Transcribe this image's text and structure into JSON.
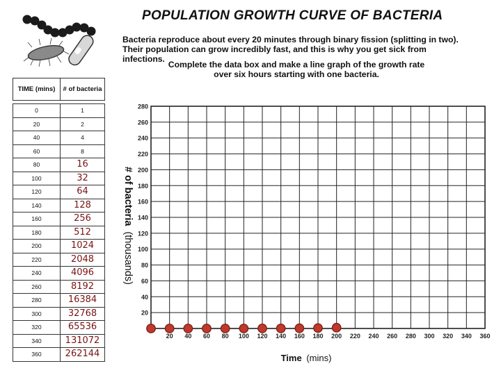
{
  "title": "POPULATION GROWTH CURVE OF BACTERIA",
  "intro": {
    "line1": "Bacteria reproduce about every 20 minutes through binary fission (splitting in two).",
    "line2": "Their population can grow incredibly fast, and this is why you get sick from infections."
  },
  "instructions": {
    "line1": "Complete the data box and make a line graph of the growth rate",
    "line2": "over six hours starting with one bacteria."
  },
  "table": {
    "col_time": "TIME (mins)",
    "col_count": "# of bacteria",
    "rows": [
      {
        "time": "0",
        "printed": "1",
        "handwritten": ""
      },
      {
        "time": "20",
        "printed": "2",
        "handwritten": ""
      },
      {
        "time": "40",
        "printed": "4",
        "handwritten": ""
      },
      {
        "time": "60",
        "printed": "8",
        "handwritten": ""
      },
      {
        "time": "80",
        "printed": "",
        "handwritten": "16"
      },
      {
        "time": "100",
        "printed": "",
        "handwritten": "32"
      },
      {
        "time": "120",
        "printed": "",
        "handwritten": "64"
      },
      {
        "time": "140",
        "printed": "",
        "handwritten": "128"
      },
      {
        "time": "160",
        "printed": "",
        "handwritten": "256"
      },
      {
        "time": "180",
        "printed": "",
        "handwritten": "512"
      },
      {
        "time": "200",
        "printed": "",
        "handwritten": "1024"
      },
      {
        "time": "220",
        "printed": "",
        "handwritten": "2048"
      },
      {
        "time": "240",
        "printed": "",
        "handwritten": "4096"
      },
      {
        "time": "260",
        "printed": "",
        "handwritten": "8192"
      },
      {
        "time": "280",
        "printed": "",
        "handwritten": "16384"
      },
      {
        "time": "300",
        "printed": "",
        "handwritten": "32768"
      },
      {
        "time": "320",
        "printed": "",
        "handwritten": "65536"
      },
      {
        "time": "340",
        "printed": "",
        "handwritten": "131072"
      },
      {
        "time": "360",
        "printed": "",
        "handwritten": "262144"
      }
    ]
  },
  "colors": {
    "handwriting": "#7a1212",
    "point_fill": "#c0392b",
    "point_stroke": "#7b241c",
    "grid": "#222222"
  },
  "chart_data": {
    "type": "scatter",
    "xlabel": "Time",
    "xlabel_unit": "(mins)",
    "ylabel": "# of bacteria",
    "ylabel_unit": "(thousands)",
    "xlim": [
      0,
      360
    ],
    "ylim": [
      0,
      280
    ],
    "x_ticks": [
      20,
      40,
      60,
      80,
      100,
      120,
      140,
      160,
      180,
      200,
      220,
      240,
      260,
      280,
      300,
      320,
      340,
      360
    ],
    "y_ticks": [
      20,
      40,
      60,
      80,
      100,
      120,
      140,
      160,
      180,
      200,
      220,
      240,
      260,
      280
    ],
    "grid": true,
    "points": {
      "x": [
        0,
        20,
        40,
        60,
        80,
        100,
        120,
        140,
        160,
        180,
        200
      ],
      "y": [
        0.001,
        0.002,
        0.004,
        0.008,
        0.016,
        0.032,
        0.064,
        0.128,
        0.256,
        0.512,
        1.024
      ]
    }
  }
}
